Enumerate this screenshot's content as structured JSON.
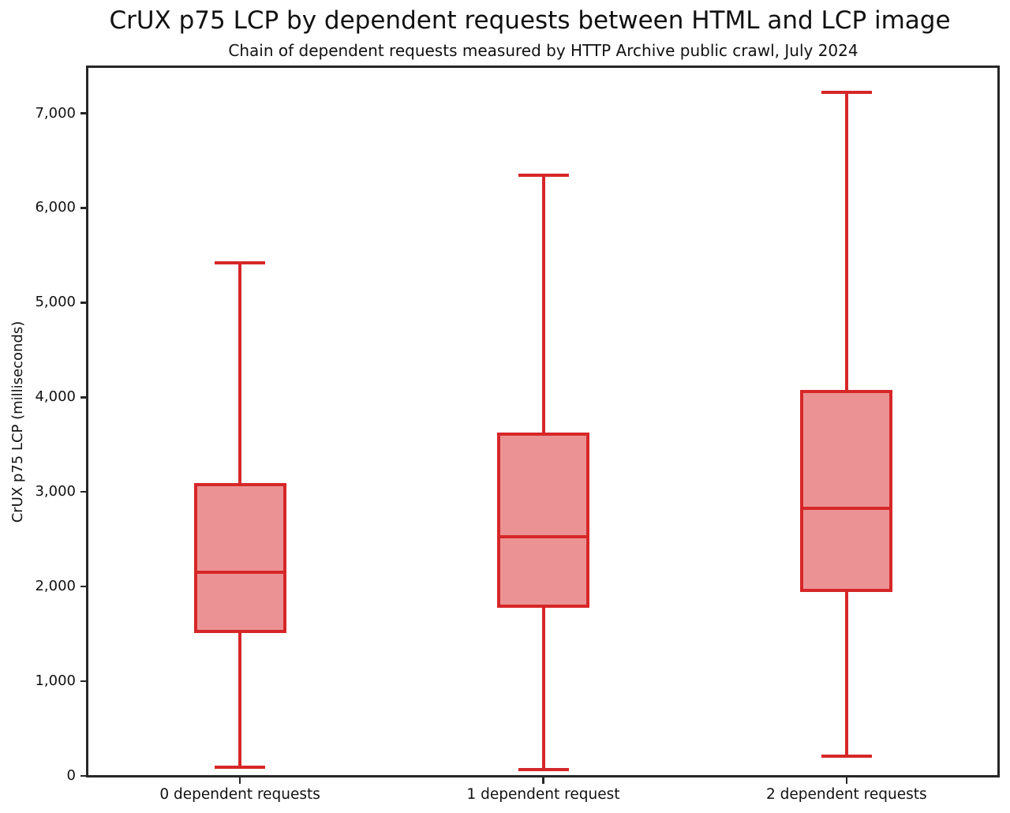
{
  "chart_data": {
    "type": "boxplot",
    "title": "CrUX p75 LCP by dependent requests between HTML and LCP image",
    "subtitle": "Chain of dependent requests measured by HTTP Archive public crawl, July 2024",
    "ylabel": "CrUX p75 LCP (milliseconds)",
    "xlabel": "",
    "categories": [
      "0 dependent requests",
      "1 dependent request",
      "2 dependent requests"
    ],
    "series": [
      {
        "name": "0 dependent requests",
        "whisker_low": 90,
        "q1": 1530,
        "median": 2150,
        "q3": 3080,
        "whisker_high": 5420
      },
      {
        "name": "1 dependent request",
        "whisker_low": 65,
        "q1": 1790,
        "median": 2530,
        "q3": 3610,
        "whisker_high": 6350
      },
      {
        "name": "2 dependent requests",
        "whisker_low": 210,
        "q1": 1960,
        "median": 2830,
        "q3": 4060,
        "whisker_high": 7225
      }
    ],
    "ylim": [
      0,
      7480
    ],
    "yticks": [
      0,
      1000,
      2000,
      3000,
      4000,
      5000,
      6000,
      7000
    ],
    "ytick_labels": [
      "0",
      "1,000",
      "2,000",
      "3,000",
      "4,000",
      "5,000",
      "6,000",
      "7,000"
    ],
    "grid": false,
    "legend": "none",
    "colors": {
      "box_edge": "#d62728",
      "box_fill": "#eb9394",
      "axis": "#262626",
      "text": "#111111"
    }
  }
}
